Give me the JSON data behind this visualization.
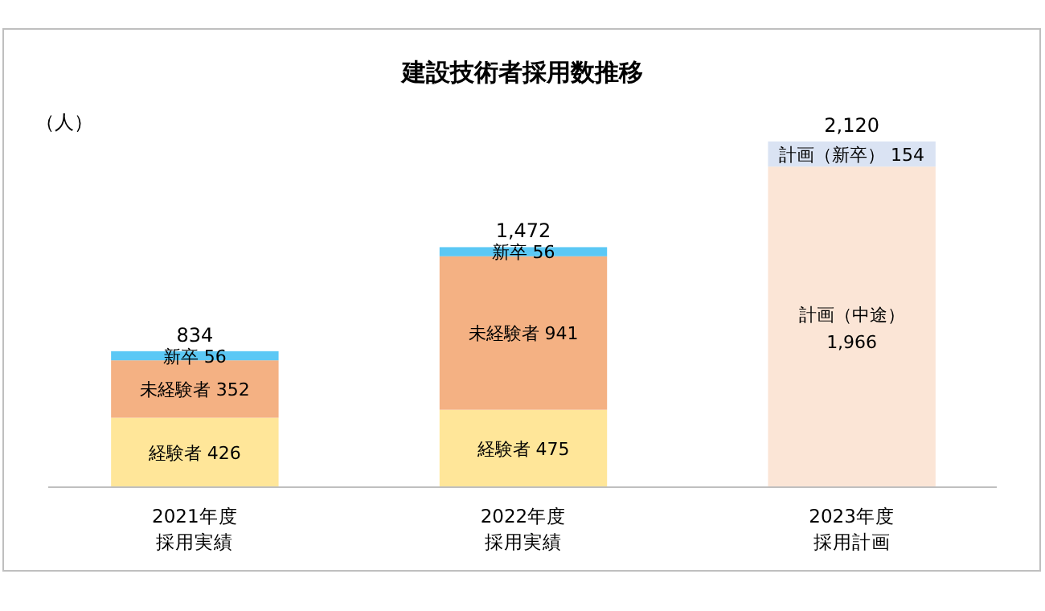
{
  "chart_data": {
    "type": "bar",
    "title": "建設技術者採用数推移",
    "ylabel": "（人）",
    "stacked": true,
    "categories": [
      "2021年度採用実績",
      "2022年度採用実績",
      "2023年度採用計画"
    ],
    "series": [
      {
        "name": "経験者",
        "color": "#ffe699",
        "values": [
          426,
          475,
          null
        ],
        "value_labels": [
          "426",
          "475",
          null
        ]
      },
      {
        "name": "未経験者",
        "color": "#f4b183",
        "values": [
          352,
          941,
          null
        ],
        "value_labels": [
          "352",
          "941",
          null
        ]
      },
      {
        "name": "新卒",
        "color": "#5bc8f5",
        "values": [
          56,
          56,
          null
        ],
        "value_labels": [
          "56",
          "56",
          null
        ]
      },
      {
        "name": "計画（中途）",
        "color": "#fbe5d6",
        "values": [
          null,
          null,
          1966
        ],
        "value_labels": [
          null,
          null,
          "1,966"
        ]
      },
      {
        "name": "計画（新卒）",
        "color": "#dae3f3",
        "values": [
          null,
          null,
          154
        ],
        "value_labels": [
          null,
          null,
          "154"
        ]
      }
    ],
    "totals": [
      "834",
      "1,472",
      "2,120"
    ]
  }
}
